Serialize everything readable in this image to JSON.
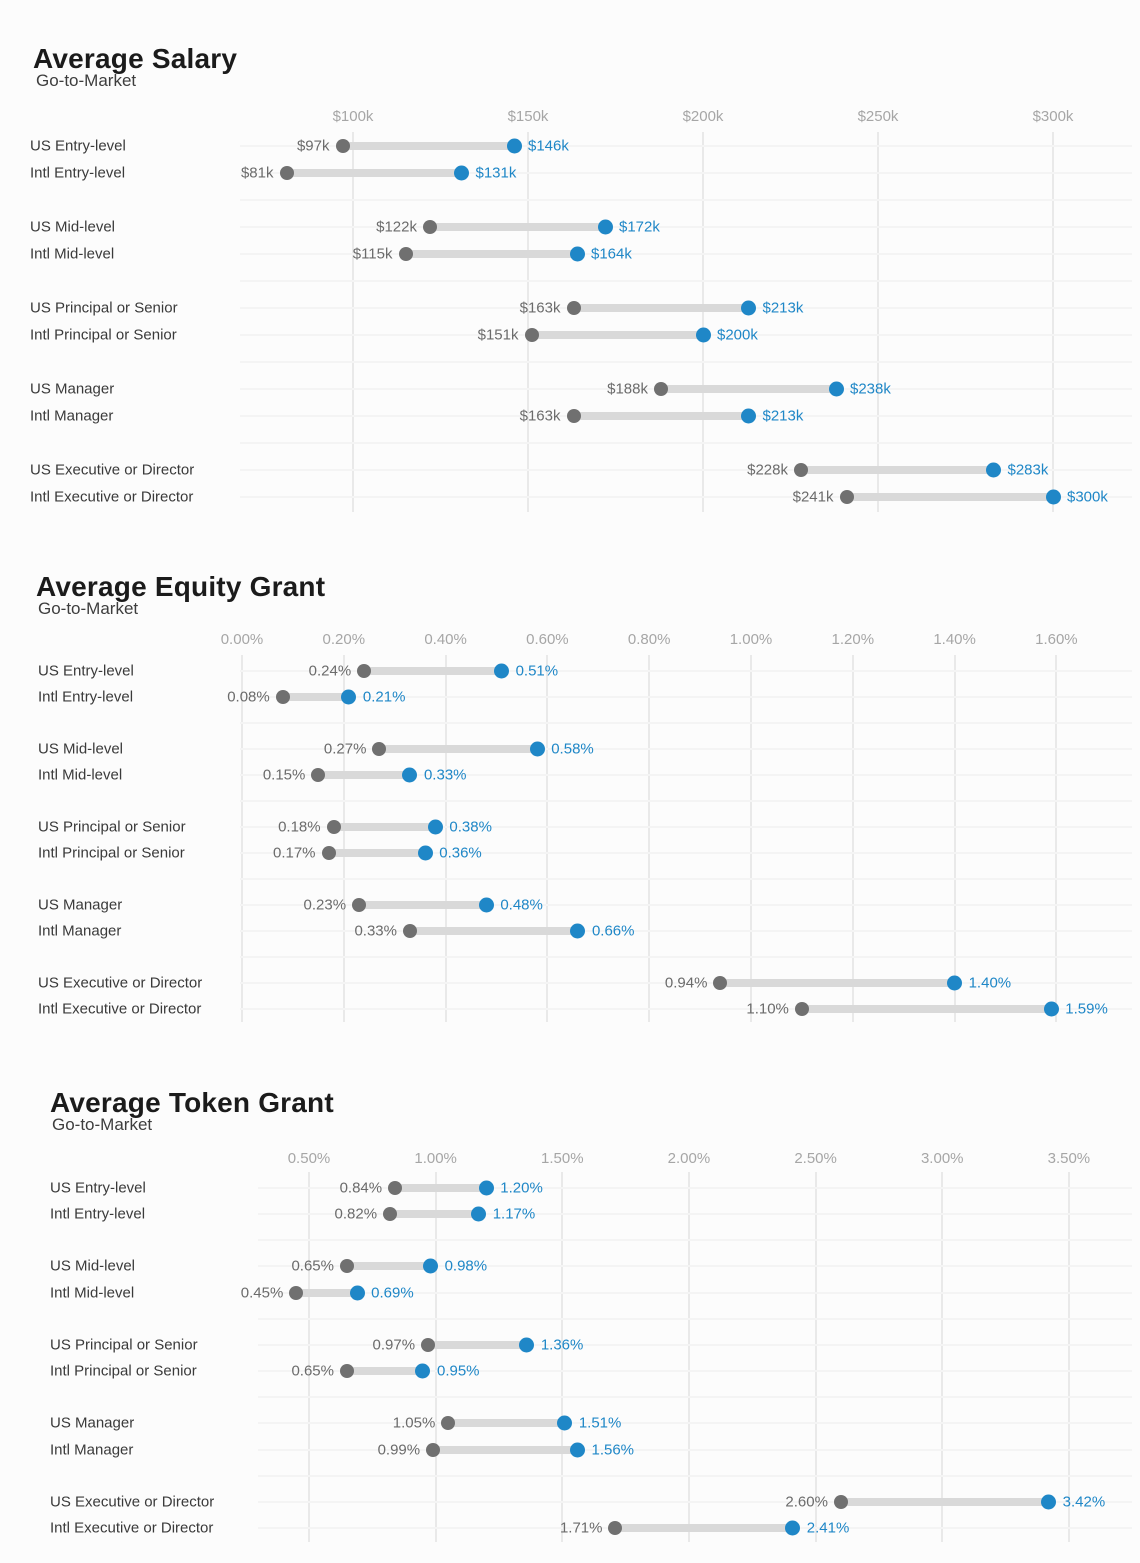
{
  "colors": {
    "high_accent": "#1f87c7",
    "low_gray": "#707070",
    "bar_gray": "#d9d9d9"
  },
  "chart_data": [
    {
      "type": "dumbbell",
      "title": "Average Salary",
      "subtitle": "Go-to-Market",
      "unit": "USD (thousands)",
      "x_tick_labels": [
        "$100k",
        "$150k",
        "$200k",
        "$250k",
        "$300k"
      ],
      "x_tick_values": [
        100,
        150,
        200,
        250,
        300
      ],
      "categories": [
        "US Entry-level",
        "Intl Entry-level",
        "US Mid-level",
        "Intl Mid-level",
        "US Principal or Senior",
        "Intl Principal or Senior",
        "US Manager",
        "Intl Manager",
        "US Executive or Director",
        "Intl Executive or Director"
      ],
      "series": [
        {
          "name": "low",
          "values": [
            97,
            81,
            122,
            115,
            163,
            151,
            188,
            163,
            228,
            241
          ]
        },
        {
          "name": "high",
          "values": [
            146,
            131,
            172,
            164,
            213,
            200,
            238,
            213,
            283,
            300
          ]
        }
      ],
      "point_labels": {
        "low": [
          "$97k",
          "$81k",
          "$122k",
          "$115k",
          "$163k",
          "$151k",
          "$188k",
          "$163k",
          "$228k",
          "$241k"
        ],
        "high": [
          "$146k",
          "$131k",
          "$172k",
          "$164k",
          "$213k",
          "$200k",
          "$238k",
          "$213k",
          "$283k",
          "$300k"
        ]
      },
      "legend": "none",
      "grid": "on"
    },
    {
      "type": "dumbbell",
      "title": "Average Equity Grant",
      "subtitle": "Go-to-Market",
      "unit": "percent",
      "x_tick_labels": [
        "0.00%",
        "0.20%",
        "0.40%",
        "0.60%",
        "0.80%",
        "1.00%",
        "1.20%",
        "1.40%",
        "1.60%"
      ],
      "x_tick_values": [
        0.0,
        0.2,
        0.4,
        0.6,
        0.8,
        1.0,
        1.2,
        1.4,
        1.6
      ],
      "categories": [
        "US Entry-level",
        "Intl Entry-level",
        "US Mid-level",
        "Intl Mid-level",
        "US Principal or Senior",
        "Intl Principal or Senior",
        "US Manager",
        "Intl Manager",
        "US Executive or Director",
        "Intl Executive or Director"
      ],
      "series": [
        {
          "name": "low",
          "values": [
            0.24,
            0.08,
            0.27,
            0.15,
            0.18,
            0.17,
            0.23,
            0.33,
            0.94,
            1.1
          ]
        },
        {
          "name": "high",
          "values": [
            0.51,
            0.21,
            0.58,
            0.33,
            0.38,
            0.36,
            0.48,
            0.66,
            1.4,
            1.59
          ]
        }
      ],
      "point_labels": {
        "low": [
          "0.24%",
          "0.08%",
          "0.27%",
          "0.15%",
          "0.18%",
          "0.17%",
          "0.23%",
          "0.33%",
          "0.94%",
          "1.10%"
        ],
        "high": [
          "0.51%",
          "0.21%",
          "0.58%",
          "0.33%",
          "0.38%",
          "0.36%",
          "0.48%",
          "0.66%",
          "1.40%",
          "1.59%"
        ]
      },
      "legend": "none",
      "grid": "on"
    },
    {
      "type": "dumbbell",
      "title": "Average Token Grant",
      "subtitle": "Go-to-Market",
      "unit": "percent",
      "x_tick_labels": [
        "0.50%",
        "1.00%",
        "1.50%",
        "2.00%",
        "2.50%",
        "3.00%",
        "3.50%"
      ],
      "x_tick_values": [
        0.5,
        1.0,
        1.5,
        2.0,
        2.5,
        3.0,
        3.5
      ],
      "categories": [
        "US Entry-level",
        "Intl Entry-level",
        "US Mid-level",
        "Intl Mid-level",
        "US Principal or Senior",
        "Intl Principal or Senior",
        "US Manager",
        "Intl Manager",
        "US Executive or Director",
        "Intl Executive or Director"
      ],
      "series": [
        {
          "name": "low",
          "values": [
            0.84,
            0.82,
            0.65,
            0.45,
            0.97,
            0.65,
            1.05,
            0.99,
            2.6,
            1.71
          ]
        },
        {
          "name": "high",
          "values": [
            1.2,
            1.17,
            0.98,
            0.69,
            1.36,
            0.95,
            1.51,
            1.56,
            3.42,
            2.41
          ]
        }
      ],
      "point_labels": {
        "low": [
          "0.84%",
          "0.82%",
          "0.65%",
          "0.45%",
          "0.97%",
          "0.65%",
          "1.05%",
          "0.99%",
          "2.60%",
          "1.71%"
        ],
        "high": [
          "1.20%",
          "1.17%",
          "0.98%",
          "0.69%",
          "1.36%",
          "0.95%",
          "1.51%",
          "1.56%",
          "3.42%",
          "2.41%"
        ]
      },
      "legend": "none",
      "grid": "on"
    }
  ]
}
